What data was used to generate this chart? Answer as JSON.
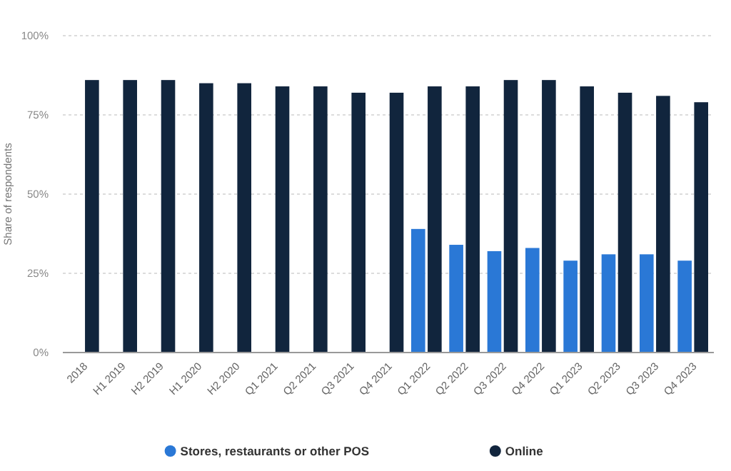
{
  "chart_data": {
    "type": "bar",
    "ylabel": "Share of respondents",
    "categories": [
      "2018",
      "H1 2019",
      "H2 2019",
      "H1 2020",
      "H2 2020",
      "Q1 2021",
      "Q2 2021",
      "Q3 2021",
      "Q4 2021",
      "Q1 2022",
      "Q2 2022",
      "Q3 2022",
      "Q4 2022",
      "Q1 2023",
      "Q2 2023",
      "Q3 2023",
      "Q4 2023"
    ],
    "series": [
      {
        "name": "Stores, restaurants or other POS",
        "color": "#2a78d6",
        "values": [
          null,
          null,
          null,
          null,
          null,
          null,
          null,
          null,
          null,
          39,
          34,
          32,
          33,
          29,
          31,
          31,
          29
        ]
      },
      {
        "name": "Online",
        "color": "#11253d",
        "values": [
          86,
          86,
          86,
          85,
          85,
          84,
          84,
          82,
          82,
          84,
          84,
          86,
          86,
          84,
          82,
          81,
          79
        ]
      }
    ],
    "ylim": [
      0,
      100
    ],
    "yticks": [
      {
        "value": 0,
        "label": "0%"
      },
      {
        "value": 25,
        "label": "25%"
      },
      {
        "value": 50,
        "label": "50%"
      },
      {
        "value": 75,
        "label": "75%"
      },
      {
        "value": 100,
        "label": "100%"
      }
    ],
    "grid": "y",
    "legend": "bottom"
  }
}
